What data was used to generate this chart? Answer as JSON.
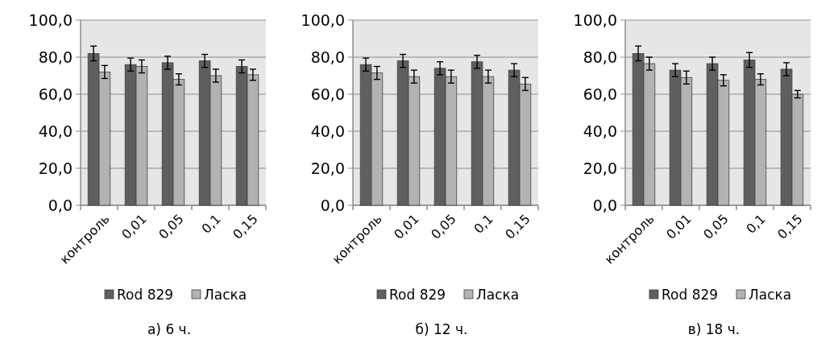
{
  "chart_data": [
    {
      "type": "bar",
      "categories": [
        "контроль",
        "0,01",
        "0,05",
        "0,1",
        "0,15"
      ],
      "series": [
        {
          "name": "Rod 829",
          "color": "#5f5f5f",
          "values": [
            82,
            76,
            77,
            78,
            75
          ],
          "errors": [
            4,
            3.5,
            3.5,
            3.5,
            3.5
          ]
        },
        {
          "name": "Ласка",
          "color": "#b2b2b2",
          "values": [
            72,
            75,
            68,
            70,
            70.5
          ],
          "errors": [
            3.5,
            3.5,
            3,
            3.5,
            3
          ]
        }
      ],
      "ylim": [
        0,
        100
      ],
      "yticks": [
        {
          "value": 0,
          "label": "0,0"
        },
        {
          "value": 20,
          "label": "20,0"
        },
        {
          "value": 40,
          "label": "40,0"
        },
        {
          "value": 60,
          "label": "60,0"
        },
        {
          "value": 80,
          "label": "80,0"
        },
        {
          "value": 100,
          "label": "100,0"
        }
      ],
      "grid": "y",
      "legend": "bottom",
      "annotations": [
        "а) 6 ч."
      ]
    },
    {
      "type": "bar",
      "categories": [
        "контроль",
        "0,01",
        "0,05",
        "0,1",
        "0,15"
      ],
      "series": [
        {
          "name": "Rod 829",
          "color": "#5f5f5f",
          "values": [
            76,
            78,
            74,
            77.5,
            73
          ],
          "errors": [
            3.5,
            3.5,
            3.5,
            3.5,
            3.5
          ]
        },
        {
          "name": "Ласка",
          "color": "#b2b2b2",
          "values": [
            71.5,
            69.5,
            69.5,
            69.5,
            65.5
          ],
          "errors": [
            3.5,
            3.5,
            3.5,
            3.5,
            3.5
          ]
        }
      ],
      "ylim": [
        0,
        100
      ],
      "yticks": [
        {
          "value": 0,
          "label": "0,0"
        },
        {
          "value": 20,
          "label": "20,0"
        },
        {
          "value": 40,
          "label": "40,0"
        },
        {
          "value": 60,
          "label": "60,0"
        },
        {
          "value": 80,
          "label": "80,0"
        },
        {
          "value": 100,
          "label": "100,0"
        }
      ],
      "grid": "y",
      "legend": "bottom",
      "annotations": [
        "б) 12 ч."
      ]
    },
    {
      "type": "bar",
      "categories": [
        "контроль",
        "0,01",
        "0,05",
        "0,1",
        "0,15"
      ],
      "series": [
        {
          "name": "Rod 829",
          "color": "#5f5f5f",
          "values": [
            82,
            73,
            76.5,
            78.5,
            73.5
          ],
          "errors": [
            4,
            3.5,
            3.5,
            4,
            3.5
          ]
        },
        {
          "name": "Ласка",
          "color": "#b2b2b2",
          "values": [
            76.5,
            69,
            67.5,
            68,
            60
          ],
          "errors": [
            3.5,
            3.5,
            3,
            3,
            2
          ]
        }
      ],
      "ylim": [
        0,
        100
      ],
      "yticks": [
        {
          "value": 0,
          "label": "0,0"
        },
        {
          "value": 20,
          "label": "20,0"
        },
        {
          "value": 40,
          "label": "40,0"
        },
        {
          "value": 60,
          "label": "60,0"
        },
        {
          "value": 80,
          "label": "80,0"
        },
        {
          "value": 100,
          "label": "100,0"
        }
      ],
      "grid": "y",
      "legend": "bottom",
      "annotations": [
        "в) 18 ч."
      ]
    }
  ]
}
